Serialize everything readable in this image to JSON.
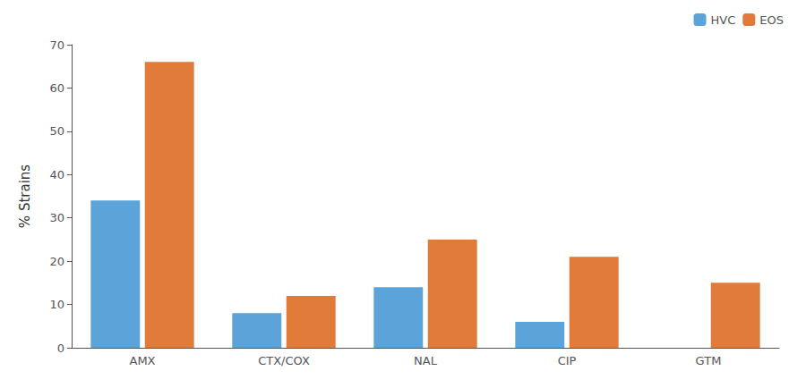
{
  "chart_data": {
    "type": "bar",
    "categories": [
      "AMX",
      "CTX/COX",
      "NAL",
      "CIP",
      "GTM"
    ],
    "series": [
      {
        "name": "HVC",
        "color": "#5BA3D9",
        "values": [
          34,
          8,
          14,
          6,
          0
        ]
      },
      {
        "name": "EOS",
        "color": "#E07B39",
        "values": [
          66,
          12,
          25,
          21,
          15
        ]
      }
    ],
    "ylabel": "% Strains",
    "ylim": [
      0,
      70
    ],
    "yticks": [
      0,
      10,
      20,
      30,
      40,
      50,
      60,
      70
    ],
    "grid": false,
    "legend": "upper right"
  }
}
